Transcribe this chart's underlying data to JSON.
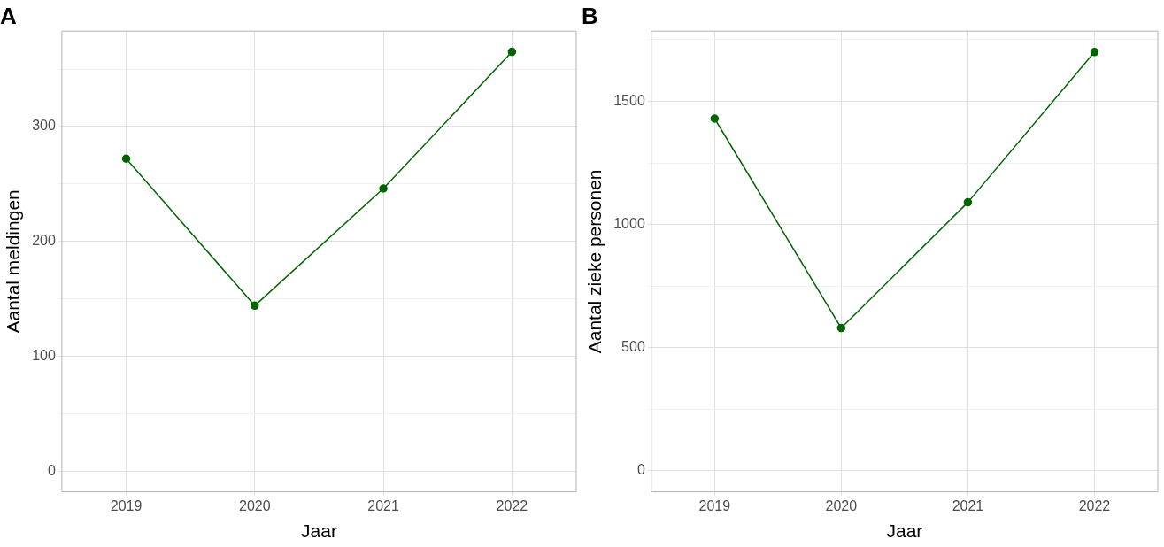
{
  "chart_data": [
    {
      "type": "line",
      "title": "A",
      "xlabel": "Jaar",
      "ylabel": "Aantal meldingen",
      "categories": [
        "2019",
        "2020",
        "2021",
        "2022"
      ],
      "series": [
        {
          "color": "#006400",
          "values": [
            272,
            144,
            246,
            365
          ]
        }
      ],
      "ylim": [
        -18,
        383
      ],
      "yticks": [
        0,
        {
          "value": 50,
          "label": null
        },
        100,
        {
          "value": 150,
          "label": null
        },
        200,
        {
          "value": 250,
          "label": null
        },
        300,
        {
          "value": 350,
          "label": null
        }
      ],
      "grid": true,
      "legend": false,
      "marker": "circle",
      "line_style": "solid"
    },
    {
      "type": "line",
      "title": "B",
      "xlabel": "Jaar",
      "ylabel": "Aantal zieke personen",
      "categories": [
        "2019",
        "2020",
        "2021",
        "2022"
      ],
      "series": [
        {
          "color": "#006400",
          "values": [
            1430,
            580,
            1090,
            1700
          ]
        }
      ],
      "ylim": [
        -85,
        1785
      ],
      "yticks": [
        0,
        {
          "value": 250,
          "label": null
        },
        500,
        {
          "value": 750,
          "label": null
        },
        1000,
        {
          "value": 1250,
          "label": null
        },
        1500,
        {
          "value": 1750,
          "label": null
        }
      ],
      "grid": true,
      "legend": false,
      "marker": "circle",
      "line_style": "solid"
    }
  ]
}
